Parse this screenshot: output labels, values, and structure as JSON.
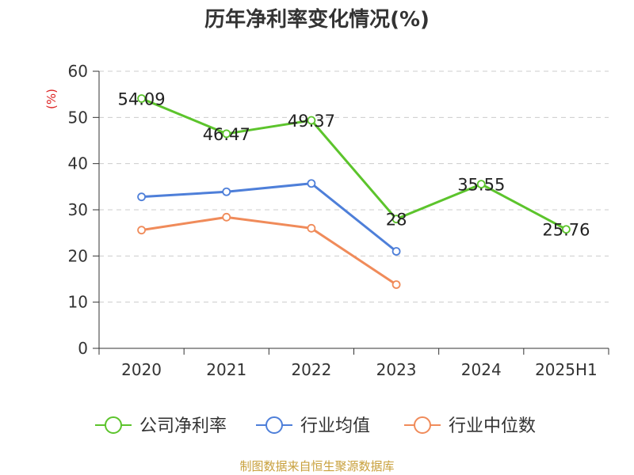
{
  "title": "历年净利率变化情况(%)",
  "source": "制图数据来自恒生聚源数据库",
  "chart_data": {
    "type": "line",
    "categories": [
      "2020",
      "2021",
      "2022",
      "2023",
      "2024",
      "2025H1"
    ],
    "ylabel": "(%)",
    "ylim": [
      0,
      60
    ],
    "yticks": [
      0,
      10,
      20,
      30,
      40,
      50,
      60
    ],
    "grid": true,
    "legend_position": "bottom",
    "series": [
      {
        "name": "公司净利率",
        "color": "#5cc42c",
        "values": [
          54.09,
          46.47,
          49.37,
          28,
          35.55,
          25.76
        ],
        "labels": [
          "54.09",
          "46.47",
          "49.37",
          "28",
          "35.55",
          "25.76"
        ]
      },
      {
        "name": "行业均值",
        "color": "#4e7fd9",
        "values": [
          32.8,
          33.9,
          35.7,
          21.0,
          null,
          null
        ]
      },
      {
        "name": "行业中位数",
        "color": "#f08b5a",
        "values": [
          25.6,
          28.4,
          26.0,
          13.8,
          null,
          null
        ]
      }
    ]
  }
}
